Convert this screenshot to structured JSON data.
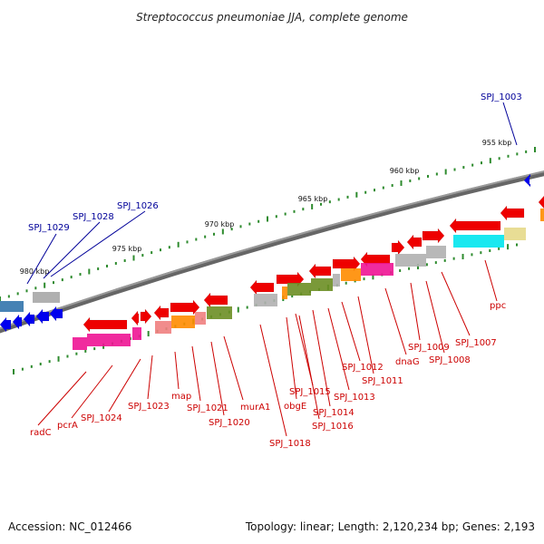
{
  "title": "Streptococcus pneumoniae JJA, complete genome",
  "accession": "Accession: NC_012466",
  "topology": "Topology: linear; Length: 2,120,234 bp; Genes: 2,193",
  "scale_labels": [
    "955 kbp",
    "960 kbp",
    "965 kbp",
    "970 kbp",
    "975 kbp",
    "980 kbp"
  ],
  "upper_labels": [
    "SPJ_1003",
    "SPJ_1026",
    "SPJ_1028",
    "SPJ_1029"
  ],
  "lower_labels": [
    "ppc",
    "SPJ_1007",
    "SPJ_1008",
    "SPJ_1009",
    "dnaG",
    "SPJ_1011",
    "SPJ_1012",
    "SPJ_1013",
    "SPJ_1014",
    "SPJ_1015",
    "SPJ_1016",
    "obgE",
    "SPJ_1018",
    "murA1",
    "SPJ_1020",
    "SPJ_1021",
    "map",
    "SPJ_1023",
    "SPJ_1024",
    "pcrA",
    "radC"
  ],
  "colors": {
    "backbone": "#808080",
    "forward_gene": "#ee0000",
    "reverse_gene": "#0000ee",
    "label_red": "#cc0000",
    "label_blue": "#000099",
    "tick": "#2e8b2e",
    "magenta": "#ee1493",
    "orange": "#ff8c00",
    "olive": "#6b8e23",
    "cyan": "#00e5ee",
    "khaki": "#e6d98a",
    "grey_gene": "#b0b0b0",
    "steelblue": "#4682b4",
    "salmon": "#f08080"
  }
}
